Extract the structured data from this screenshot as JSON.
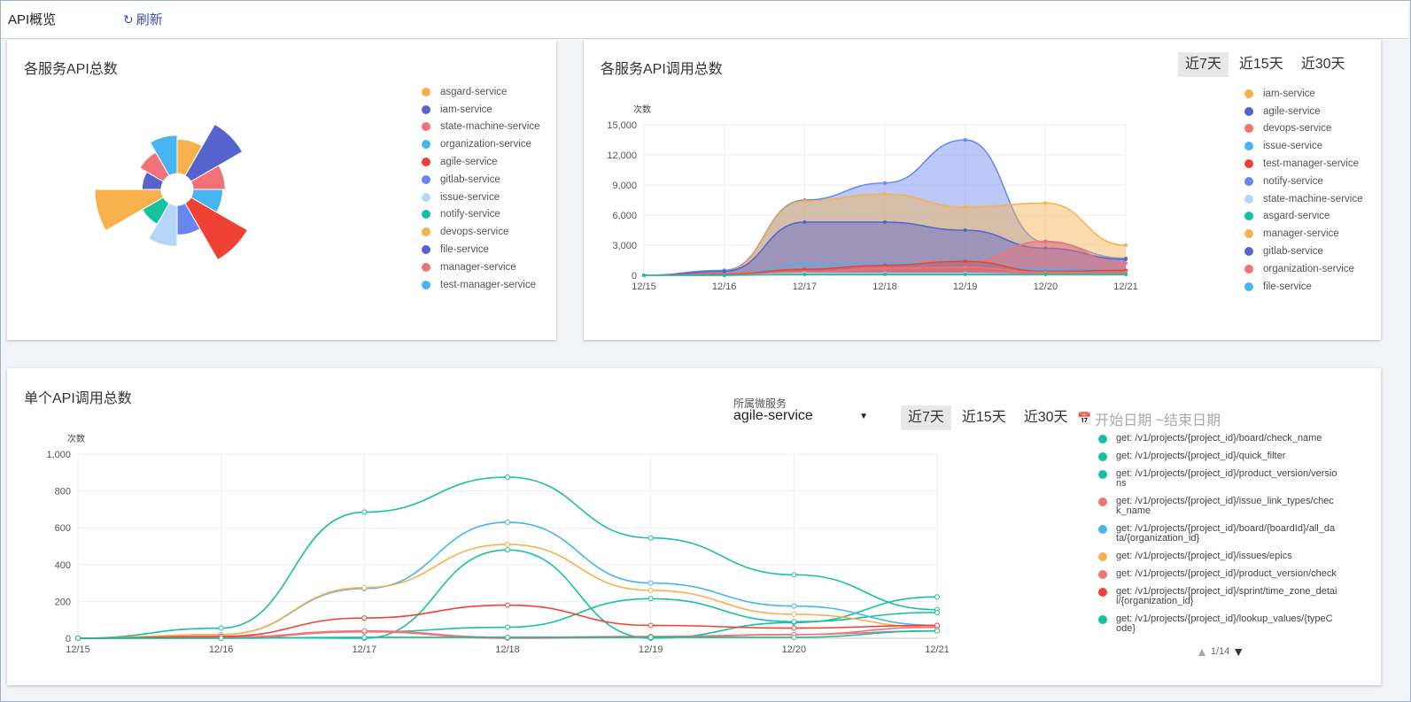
{
  "topbar": {
    "title": "API概览",
    "refresh_label": "刷新"
  },
  "card1": {
    "title": "各服务API总数",
    "legend": [
      {
        "name": "asgard-service",
        "color": "#f7b14c"
      },
      {
        "name": "iam-service",
        "color": "#5763cd"
      },
      {
        "name": "state-machine-service",
        "color": "#f2727a"
      },
      {
        "name": "organization-service",
        "color": "#48b4f1"
      },
      {
        "name": "agile-service",
        "color": "#ef4234"
      },
      {
        "name": "gitlab-service",
        "color": "#6886f0"
      },
      {
        "name": "issue-service",
        "color": "#b5d6f9"
      },
      {
        "name": "notify-service",
        "color": "#17c09f"
      },
      {
        "name": "devops-service",
        "color": "#f7b14c"
      },
      {
        "name": "file-service",
        "color": "#5763cd"
      },
      {
        "name": "manager-service",
        "color": "#f2727a"
      },
      {
        "name": "test-manager-service",
        "color": "#48b4f1"
      }
    ]
  },
  "card2": {
    "title": "各服务API调用总数",
    "ranges": [
      "近7天",
      "近15天",
      "近30天"
    ],
    "legend": [
      {
        "name": "iam-service",
        "color": "#f7b14c"
      },
      {
        "name": "agile-service",
        "color": "#5763cd"
      },
      {
        "name": "devops-service",
        "color": "#f2727a"
      },
      {
        "name": "issue-service",
        "color": "#48b4f1"
      },
      {
        "name": "test-manager-service",
        "color": "#ef4234"
      },
      {
        "name": "notify-service",
        "color": "#6886f0"
      },
      {
        "name": "state-machine-service",
        "color": "#b5d6f9"
      },
      {
        "name": "asgard-service",
        "color": "#17c09f"
      },
      {
        "name": "manager-service",
        "color": "#f7b14c"
      },
      {
        "name": "gitlab-service",
        "color": "#5763cd"
      },
      {
        "name": "organization-service",
        "color": "#f2727a"
      },
      {
        "name": "file-service",
        "color": "#48b4f1"
      }
    ]
  },
  "card3": {
    "title": "单个API调用总数",
    "service_label": "所属微服务",
    "service_value": "agile-service",
    "ranges": [
      "近7天",
      "近15天",
      "近30天"
    ],
    "date_placeholder": "开始日期 ~结束日期",
    "pager": "1/14",
    "api_legend": [
      {
        "label": "get: /v1/projects/{project_id}/board/check_name",
        "color": "#17c09f"
      },
      {
        "label": "get: /v1/projects/{project_id}/quick_filter",
        "color": "#17c09f"
      },
      {
        "label": "get: /v1/projects/{project_id}/product_version/versions",
        "color": "#17c09f"
      },
      {
        "label": "get: /v1/projects/{project_id}/issue_link_types/check_name",
        "color": "#f2727a"
      },
      {
        "label": "get: /v1/projects/{project_id}/board/{boardId}/all_data/{organization_id}",
        "color": "#48b4f1"
      },
      {
        "label": "get: /v1/projects/{project_id}/issues/epics",
        "color": "#f7b14c"
      },
      {
        "label": "get: /v1/projects/{project_id}/product_version/check",
        "color": "#f2727a"
      },
      {
        "label": "get: /v1/projects/{project_id}/sprint/time_zone_detail/{organization_id}",
        "color": "#ef4234"
      },
      {
        "label": "get: /v1/projects/{project_id}/lookup_values/{typeCode}",
        "color": "#17c09f"
      }
    ]
  },
  "chart_data": [
    {
      "type": "rose",
      "categories": [
        "asgard-service",
        "iam-service",
        "state-machine-service",
        "organization-service",
        "agile-service",
        "gitlab-service",
        "issue-service",
        "notify-service",
        "devops-service",
        "file-service",
        "manager-service",
        "test-manager-service"
      ],
      "values": [
        16,
        48,
        14,
        12,
        58,
        12,
        23,
        8,
        60,
        5,
        10,
        20
      ],
      "colors": [
        "#f7b14c",
        "#5763cd",
        "#f2727a",
        "#48b4f1",
        "#ef4234",
        "#6886f0",
        "#b5d6f9",
        "#17c09f",
        "#f7b14c",
        "#5763cd",
        "#f2727a",
        "#48b4f1"
      ]
    },
    {
      "type": "area",
      "ylabel": "次数",
      "x": [
        "12/15",
        "12/16",
        "12/17",
        "12/18",
        "12/19",
        "12/20",
        "12/21"
      ],
      "y_ticks": [
        "0",
        "3,000",
        "6,000",
        "9,000",
        "12,000",
        "15,000"
      ],
      "ylim": [
        0,
        15000
      ],
      "series": [
        {
          "name": "notify-service",
          "color": "#6886f0",
          "values": [
            0,
            500,
            7500,
            9200,
            13500,
            3300,
            1700
          ]
        },
        {
          "name": "iam-service",
          "color": "#f7b14c",
          "values": [
            0,
            400,
            7400,
            8100,
            6800,
            7200,
            3000
          ]
        },
        {
          "name": "agile-service",
          "color": "#5763cd",
          "values": [
            0,
            400,
            5300,
            5300,
            4500,
            2700,
            1600
          ]
        },
        {
          "name": "organization-service",
          "color": "#f2727a",
          "values": [
            0,
            100,
            1400,
            1400,
            1300,
            3400,
            1200
          ]
        },
        {
          "name": "issue-service",
          "color": "#48b4f1",
          "values": [
            0,
            0,
            1300,
            1300,
            1200,
            600,
            500
          ]
        },
        {
          "name": "test-manager-service",
          "color": "#ef4234",
          "values": [
            0,
            100,
            600,
            1000,
            1400,
            400,
            500
          ]
        },
        {
          "name": "devops-service",
          "color": "#f2727a",
          "values": [
            0,
            0,
            300,
            700,
            800,
            300,
            300
          ]
        },
        {
          "name": "state-machine-service",
          "color": "#b5d6f9",
          "values": [
            0,
            0,
            200,
            200,
            200,
            100,
            100
          ]
        },
        {
          "name": "asgard-service",
          "color": "#17c09f",
          "values": [
            0,
            0,
            100,
            100,
            100,
            100,
            100
          ]
        }
      ]
    },
    {
      "type": "line",
      "ylabel": "次数",
      "x": [
        "12/15",
        "12/16",
        "12/17",
        "12/18",
        "12/19",
        "12/20",
        "12/21"
      ],
      "y_ticks": [
        "0",
        "200",
        "400",
        "600",
        "800",
        "1,000"
      ],
      "ylim": [
        0,
        1000
      ],
      "series": [
        {
          "name": "get: /v1/projects/{project_id}/board/check_name",
          "color": "#17c09f",
          "values": [
            0,
            55,
            685,
            875,
            545,
            345,
            155
          ]
        },
        {
          "name": "get: /v1/projects/{project_id}/quick_filter",
          "color": "#17c09f",
          "values": [
            0,
            5,
            0,
            480,
            0,
            85,
            225
          ]
        },
        {
          "name": "get: /v1/projects/{project_id}/product_version/versions",
          "color": "#17c09f",
          "values": [
            0,
            5,
            35,
            60,
            215,
            90,
            140
          ]
        },
        {
          "name": "get: /v1/projects/{project_id}/issue_link_types/check_name",
          "color": "#f2727a",
          "values": [
            0,
            0,
            35,
            0,
            5,
            20,
            40
          ]
        },
        {
          "name": "get: /v1/projects/{project_id}/board/{boardId}/all_data/{organization_id}",
          "color": "#48b4f1",
          "values": [
            0,
            20,
            270,
            630,
            300,
            175,
            70
          ]
        },
        {
          "name": "get: /v1/projects/{project_id}/issues/epics",
          "color": "#f7b14c",
          "values": [
            0,
            20,
            275,
            510,
            260,
            130,
            60
          ]
        },
        {
          "name": "get: /v1/projects/{project_id}/product_version/check",
          "color": "#f2727a",
          "values": [
            0,
            5,
            40,
            5,
            10,
            20,
            60
          ]
        },
        {
          "name": "get: /v1/projects/{project_id}/sprint/time_zone_detail/{organization_id}",
          "color": "#ef4234",
          "values": [
            0,
            10,
            110,
            180,
            70,
            55,
            70
          ]
        },
        {
          "name": "get: /v1/projects/{project_id}/lookup_values/{typeCode}",
          "color": "#17c09f",
          "values": [
            0,
            0,
            5,
            5,
            5,
            5,
            40
          ]
        }
      ]
    }
  ]
}
